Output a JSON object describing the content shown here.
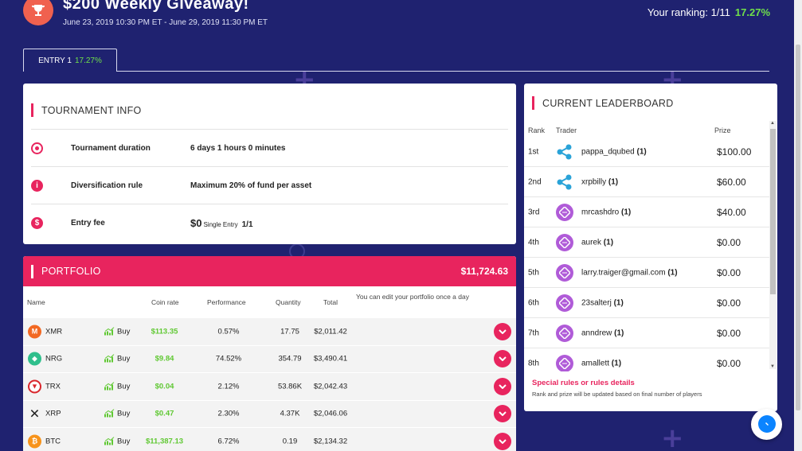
{
  "header": {
    "title": "$200 Weekly Giveaway!",
    "dates": "June 23, 2019 10:30 PM ET - June 29, 2019 11:30 PM ET",
    "ranking_label": "Your ranking: 1/11",
    "ranking_pct": "17.27%"
  },
  "tabs": [
    {
      "label": "ENTRY 1",
      "pct": "17.27%"
    }
  ],
  "tournament_info": {
    "title": "TOURNAMENT INFO",
    "rows": [
      {
        "label": "Tournament duration",
        "value": "6 days 1 hours 0 minutes"
      },
      {
        "label": "Diversification rule",
        "value": "Maximum 20% of fund per asset"
      },
      {
        "label": "Entry fee",
        "fee": "$0",
        "fee_type": "Single Entry",
        "entries": "1/1"
      }
    ]
  },
  "portfolio": {
    "title": "PORTFOLIO",
    "total": "$11,724.63",
    "columns": {
      "name": "Name",
      "rate": "Coin rate",
      "perf": "Performance",
      "qty": "Quantity",
      "total": "Total",
      "note": "You can edit your portfolio once a day"
    },
    "buy_label": "Buy",
    "rows": [
      {
        "coin": "XMR",
        "rate": "$113.35",
        "perf": "0.57%",
        "qty": "17.75",
        "total": "$2,011.42"
      },
      {
        "coin": "NRG",
        "rate": "$9.84",
        "perf": "74.52%",
        "qty": "354.79",
        "total": "$3,490.41"
      },
      {
        "coin": "TRX",
        "rate": "$0.04",
        "perf": "2.12%",
        "qty": "53.86K",
        "total": "$2,042.43"
      },
      {
        "coin": "XRP",
        "rate": "$0.47",
        "perf": "2.30%",
        "qty": "4.37K",
        "total": "$2,046.06"
      },
      {
        "coin": "BTC",
        "rate": "$11,387.13",
        "perf": "6.72%",
        "qty": "0.19",
        "total": "$2,134.32"
      }
    ]
  },
  "leaderboard": {
    "title": "CURRENT LEADERBOARD",
    "columns": {
      "rank": "Rank",
      "trader": "Trader",
      "prize": "Prize"
    },
    "rows": [
      {
        "rank": "1st",
        "name": "pappa_dqubed",
        "count": "(1)",
        "prize": "$100.00",
        "avatar": "xrp"
      },
      {
        "rank": "2nd",
        "name": "xrpbilly",
        "count": "(1)",
        "prize": "$60.00",
        "avatar": "xrp"
      },
      {
        "rank": "3rd",
        "name": "mrcashdro",
        "count": "(1)",
        "prize": "$40.00",
        "avatar": "eth"
      },
      {
        "rank": "4th",
        "name": "aurek",
        "count": "(1)",
        "prize": "$0.00",
        "avatar": "eth"
      },
      {
        "rank": "5th",
        "name": "larry.traiger@gmail.com",
        "count": "(1)",
        "prize": "$0.00",
        "avatar": "eth"
      },
      {
        "rank": "6th",
        "name": "23salterj",
        "count": "(1)",
        "prize": "$0.00",
        "avatar": "eth"
      },
      {
        "rank": "7th",
        "name": "anndrew",
        "count": "(1)",
        "prize": "$0.00",
        "avatar": "eth"
      },
      {
        "rank": "8th",
        "name": "amallett",
        "count": "(1)",
        "prize": "$0.00",
        "avatar": "eth"
      }
    ],
    "rules_link": "Special rules or rules details",
    "rules_note": "Rank and prize will be updated based on final number of players"
  },
  "colors": {
    "accent": "#e8245e",
    "background": "#1f2270",
    "positive": "#5fc832"
  }
}
